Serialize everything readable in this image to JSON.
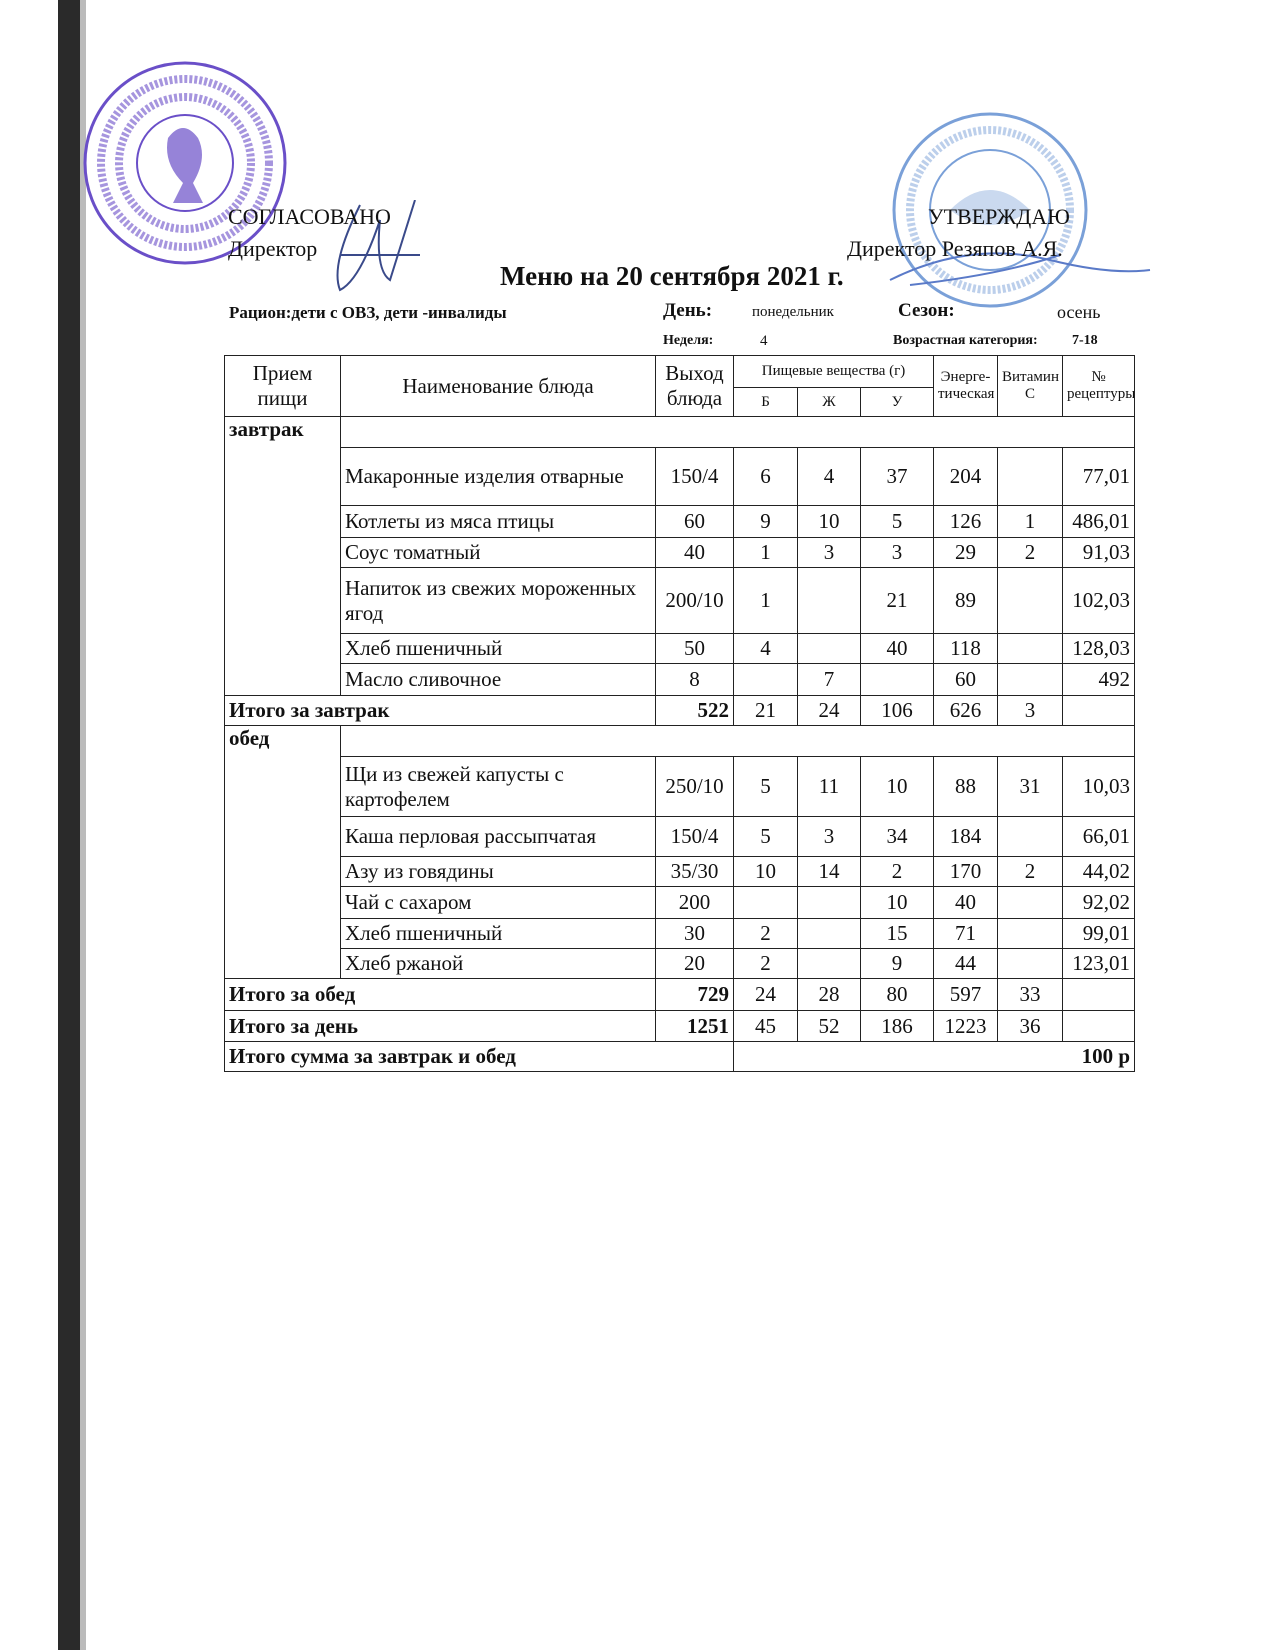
{
  "header": {
    "left_approval": "СОГЛАСОВАНО",
    "left_position": "Директор",
    "right_approval": "УТВЕРЖДАЮ",
    "right_position": "Директор Резяпов А.Я.",
    "title": "Меню на 20 сентября 2021 г.",
    "ration_label": "Рацион:дети с ОВЗ, дети -инвалиды",
    "day_label": "День:",
    "day_value": "понедельник",
    "season_label": "Сезон:",
    "season_value": "осень",
    "week_label": "Неделя:",
    "week_value": "4",
    "age_label": "Возрастная категория:",
    "age_value": "7-18"
  },
  "stamp_colors": {
    "left": "#6a4fc8",
    "right": "#7aa0d8"
  },
  "table": {
    "headers": {
      "meal": "Прием пищи",
      "dish": "Наименование блюда",
      "yield": "Выход блюда",
      "nutrients": "Пищевые вещества (г)",
      "b": "Б",
      "zh": "Ж",
      "u": "У",
      "energy": "Энерге-тическая",
      "vitamin": "Витамин С",
      "recipe": "№ рецептуры"
    },
    "breakfast": {
      "label": "завтрак",
      "rows": [
        {
          "name": "Макаронные изделия отварные",
          "yield": "150/4",
          "b": "6",
          "zh": "4",
          "u": "37",
          "energy": "204",
          "vit": "",
          "recipe": "77,01"
        },
        {
          "name": "Котлеты из мяса птицы",
          "yield": "60",
          "b": "9",
          "zh": "10",
          "u": "5",
          "energy": "126",
          "vit": "1",
          "recipe": "486,01"
        },
        {
          "name": "Соус томатный",
          "yield": "40",
          "b": "1",
          "zh": "3",
          "u": "3",
          "energy": "29",
          "vit": "2",
          "recipe": "91,03"
        },
        {
          "name": "Напиток из свежих мороженных ягод",
          "yield": "200/10",
          "b": "1",
          "zh": "",
          "u": "21",
          "energy": "89",
          "vit": "",
          "recipe": "102,03"
        },
        {
          "name": "Хлеб пшеничный",
          "yield": "50",
          "b": "4",
          "zh": "",
          "u": "40",
          "energy": "118",
          "vit": "",
          "recipe": "128,03"
        },
        {
          "name": "Масло сливочное",
          "yield": "8",
          "b": "",
          "zh": "7",
          "u": "",
          "energy": "60",
          "vit": "",
          "recipe": "492"
        }
      ],
      "total": {
        "label": "Итого за завтрак",
        "yield": "522",
        "b": "21",
        "zh": "24",
        "u": "106",
        "energy": "626",
        "vit": "3"
      }
    },
    "lunch": {
      "label": "обед",
      "rows": [
        {
          "name": "Щи из свежей капусты с картофелем",
          "yield": "250/10",
          "b": "5",
          "zh": "11",
          "u": "10",
          "energy": "88",
          "vit": "31",
          "recipe": "10,03"
        },
        {
          "name": "Каша перловая рассыпчатая",
          "yield": "150/4",
          "b": "5",
          "zh": "3",
          "u": "34",
          "energy": "184",
          "vit": "",
          "recipe": "66,01"
        },
        {
          "name": "Азу из говядины",
          "yield": "35/30",
          "b": "10",
          "zh": "14",
          "u": "2",
          "energy": "170",
          "vit": "2",
          "recipe": "44,02"
        },
        {
          "name": "Чай с сахаром",
          "yield": "200",
          "b": "",
          "zh": "",
          "u": "10",
          "energy": "40",
          "vit": "",
          "recipe": "92,02"
        },
        {
          "name": "Хлеб пшеничный",
          "yield": "30",
          "b": "2",
          "zh": "",
          "u": "15",
          "energy": "71",
          "vit": "",
          "recipe": "99,01"
        },
        {
          "name": "Хлеб ржаной",
          "yield": "20",
          "b": "2",
          "zh": "",
          "u": "9",
          "energy": "44",
          "vit": "",
          "recipe": "123,01"
        }
      ],
      "total": {
        "label": "Итого за обед",
        "yield": "729",
        "b": "24",
        "zh": "28",
        "u": "80",
        "energy": "597",
        "vit": "33"
      }
    },
    "day_total": {
      "label": "Итого за день",
      "yield": "1251",
      "b": "45",
      "zh": "52",
      "u": "186",
      "energy": "1223",
      "vit": "36"
    },
    "sum": {
      "label": "Итого сумма за завтрак и обед",
      "value": "100 р"
    }
  }
}
